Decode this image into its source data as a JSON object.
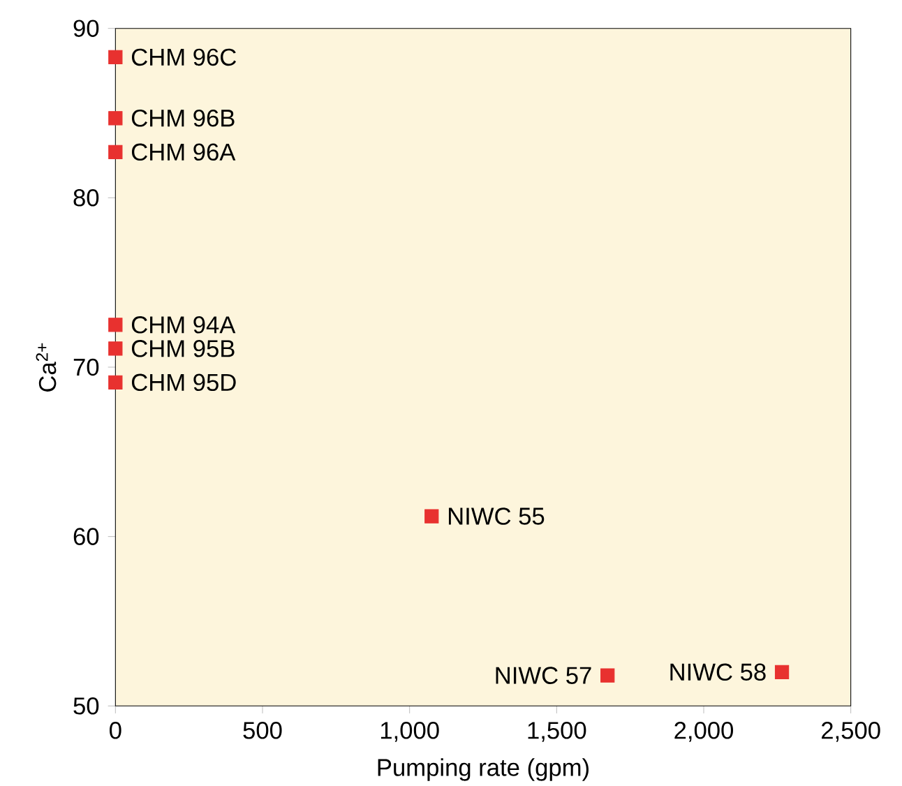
{
  "chart_data": {
    "type": "scatter",
    "xlabel": "Pumping rate (gpm)",
    "ylabel": "Ca$^{2+}$",
    "marker": "square",
    "series": [
      {
        "color": "#e8312f",
        "x": [
          0,
          0,
          0,
          0,
          0,
          0,
          1075,
          1673,
          2266
        ],
        "values": [
          88.3,
          84.7,
          82.7,
          72.5,
          71.1,
          69.1,
          61.2,
          51.8,
          52.0
        ]
      }
    ],
    "xlim": [
      0,
      2500
    ],
    "ylim": [
      50,
      90
    ],
    "xticks": [
      0,
      500,
      {
        "value": 1000,
        "label": "1,000"
      },
      {
        "value": 1500,
        "label": "1,500"
      },
      {
        "value": 2000,
        "label": "2,000"
      },
      {
        "value": 2500,
        "label": "2,500"
      }
    ],
    "yticks": [
      50,
      60,
      70,
      80,
      90
    ],
    "annotations": [
      {
        "text": "CHM 96C",
        "x": 0,
        "y": 88.3
      },
      {
        "text": "CHM 96B",
        "x": 0,
        "y": 84.7
      },
      {
        "text": "CHM 96A",
        "x": 0,
        "y": 82.7
      },
      {
        "text": "CHM 94A",
        "x": 0,
        "y": 72.5
      },
      {
        "text": "CHM 95B",
        "x": 0,
        "y": 71.1
      },
      {
        "text": "CHM 95D",
        "x": 0,
        "y": 69.1
      },
      {
        "text": "NIWC 55",
        "x": 1075,
        "y": 61.2
      },
      {
        "text": "NIWC 57",
        "x": 1673,
        "y": 51.8
      },
      {
        "text": "NIWC 58",
        "x": 2266,
        "y": 52.0
      }
    ]
  }
}
